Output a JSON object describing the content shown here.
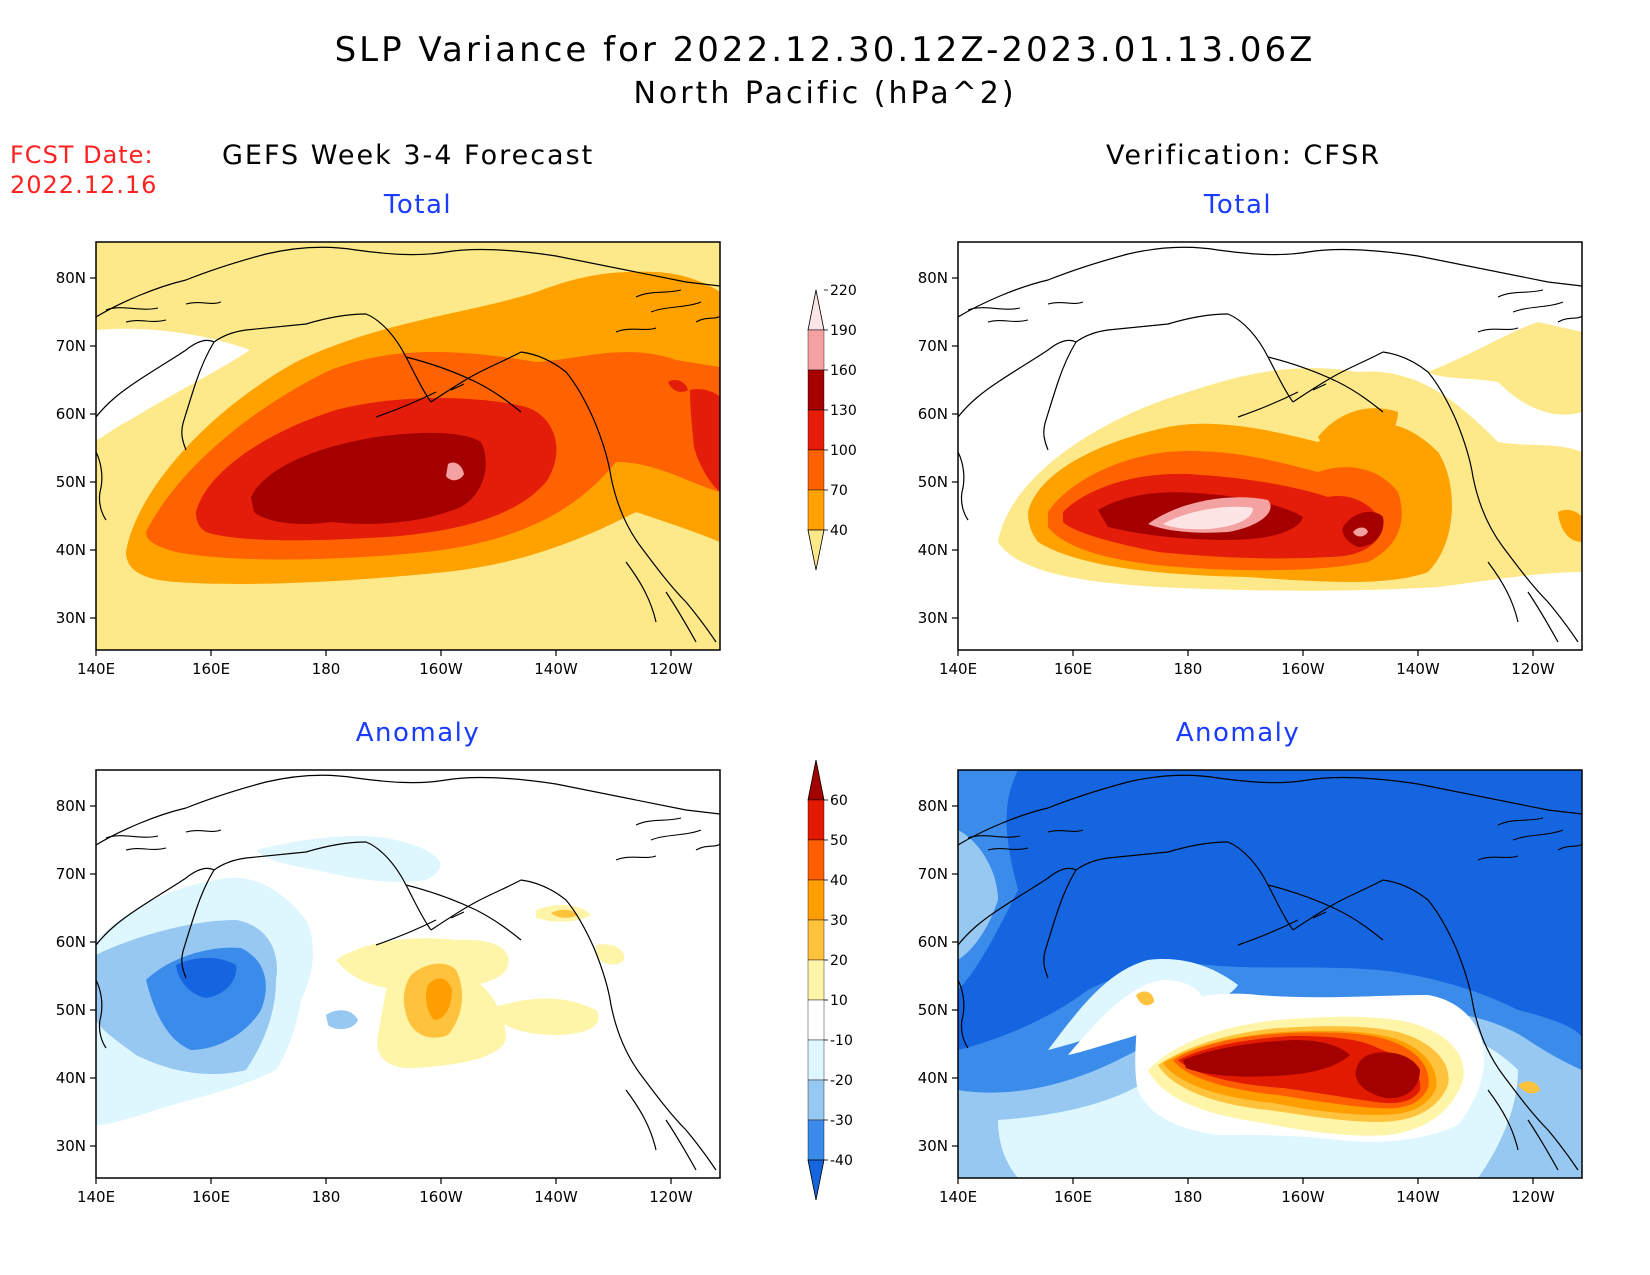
{
  "header": {
    "title_line1": "SLP Variance for 2022.12.30.12Z-2023.01.13.06Z",
    "title_line2": "North Pacific (hPa^2)"
  },
  "fcst": {
    "label": "FCST Date:",
    "date": "2022.12.16"
  },
  "columns": {
    "left": "GEFS Week 3-4 Forecast",
    "right": "Verification: CFSR"
  },
  "panels": {
    "forecast_total_title": "Total",
    "forecast_anomaly_title": "Anomaly",
    "verification_total_title": "Total",
    "verification_anomaly_title": "Anomaly"
  },
  "axes": {
    "lon_labels": [
      "140E",
      "160E",
      "180",
      "160W",
      "140W",
      "120W"
    ],
    "lat_labels": [
      "80N",
      "70N",
      "60N",
      "50N",
      "40N",
      "30N"
    ]
  },
  "colorbars": {
    "total": {
      "labels": [
        "40",
        "70",
        "100",
        "130",
        "160",
        "190",
        "220"
      ],
      "colors": [
        "#fee98a",
        "#ffa200",
        "#ff6200",
        "#e41c0a",
        "#a50000",
        "#f3a1a1",
        "#fde5e5"
      ]
    },
    "anomaly": {
      "labels": [
        "-40",
        "-30",
        "-20",
        "-10",
        "10",
        "20",
        "30",
        "40",
        "50",
        "60"
      ],
      "colors": [
        "#1565e0",
        "#3b8cea",
        "#96c8f2",
        "#def6fd",
        "#ffffff",
        "#fff5a8",
        "#ffc23c",
        "#ff9e00",
        "#ff5e00",
        "#e11a00",
        "#a30000"
      ]
    }
  }
}
